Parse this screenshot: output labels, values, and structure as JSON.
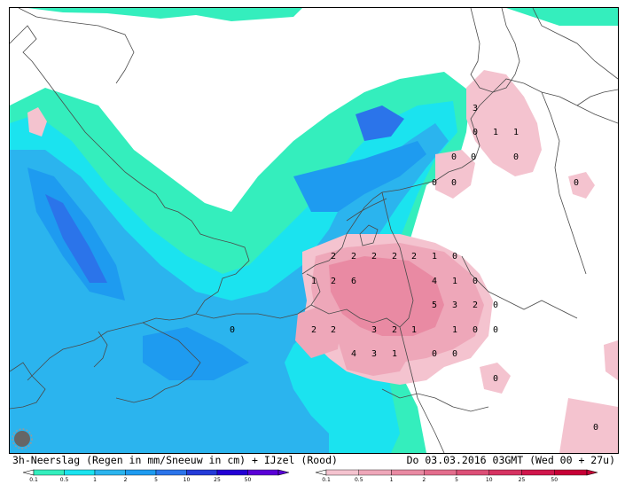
{
  "map": {
    "colors": {
      "rain": [
        "#ffffff",
        "#34eebd",
        "#1be3ef",
        "#2bb4ee",
        "#1e9bf0",
        "#2b74ea",
        "#243bd8",
        "#2300d4",
        "#5a00d6"
      ],
      "ice": [
        "#ffffff",
        "#f4c3cf",
        "#eea7b9",
        "#e98aa3",
        "#e36d8d",
        "#dc5077",
        "#d63362",
        "#d0164c",
        "#c60036"
      ]
    },
    "point_labels": [
      {
        "v": "3"
      },
      {
        "v": "0"
      },
      {
        "v": "1"
      },
      {
        "v": "1"
      },
      {
        "v": "0"
      },
      {
        "v": "0"
      },
      {
        "v": "0"
      },
      {
        "v": "0"
      },
      {
        "v": "0"
      },
      {
        "v": "2"
      },
      {
        "v": "2"
      },
      {
        "v": "2"
      },
      {
        "v": "2"
      },
      {
        "v": "2"
      },
      {
        "v": "1"
      },
      {
        "v": "0"
      },
      {
        "v": "1"
      },
      {
        "v": "2"
      },
      {
        "v": "6"
      },
      {
        "v": "4"
      },
      {
        "v": "1"
      },
      {
        "v": "0"
      },
      {
        "v": "5"
      },
      {
        "v": "3"
      },
      {
        "v": "2"
      },
      {
        "v": "0"
      },
      {
        "v": "2"
      },
      {
        "v": "2"
      },
      {
        "v": "3"
      },
      {
        "v": "2"
      },
      {
        "v": "1"
      },
      {
        "v": "1"
      },
      {
        "v": "0"
      },
      {
        "v": "0"
      },
      {
        "v": "4"
      },
      {
        "v": "3"
      },
      {
        "v": "1"
      },
      {
        "v": "0"
      },
      {
        "v": "0"
      },
      {
        "v": "0"
      },
      {
        "v": "0"
      },
      {
        "v": "0"
      },
      {
        "v": "0"
      }
    ]
  },
  "footer": {
    "left_text": "3h-Neerslag (Regen in mm/Sneeuw in cm) + IJzel (Rood)",
    "right_text": "Do 03.03.2016 03GMT (Wed 00 + 27u)"
  },
  "legend_rain": {
    "ticks": [
      "0.1",
      "0.5",
      "1",
      "2",
      "5",
      "10",
      "25",
      "50"
    ],
    "colors": [
      "#34eebd",
      "#1be3ef",
      "#2bb4ee",
      "#1e9bf0",
      "#2b74ea",
      "#243bd8",
      "#2300d4",
      "#5a00d6"
    ]
  },
  "legend_ice": {
    "ticks": [
      "0.1",
      "0.5",
      "1",
      "2",
      "5",
      "10",
      "25",
      "50"
    ],
    "colors": [
      "#f4c3cf",
      "#eea7b9",
      "#e98aa3",
      "#e36d8d",
      "#dc5077",
      "#d63362",
      "#d0164c",
      "#c60036"
    ]
  }
}
